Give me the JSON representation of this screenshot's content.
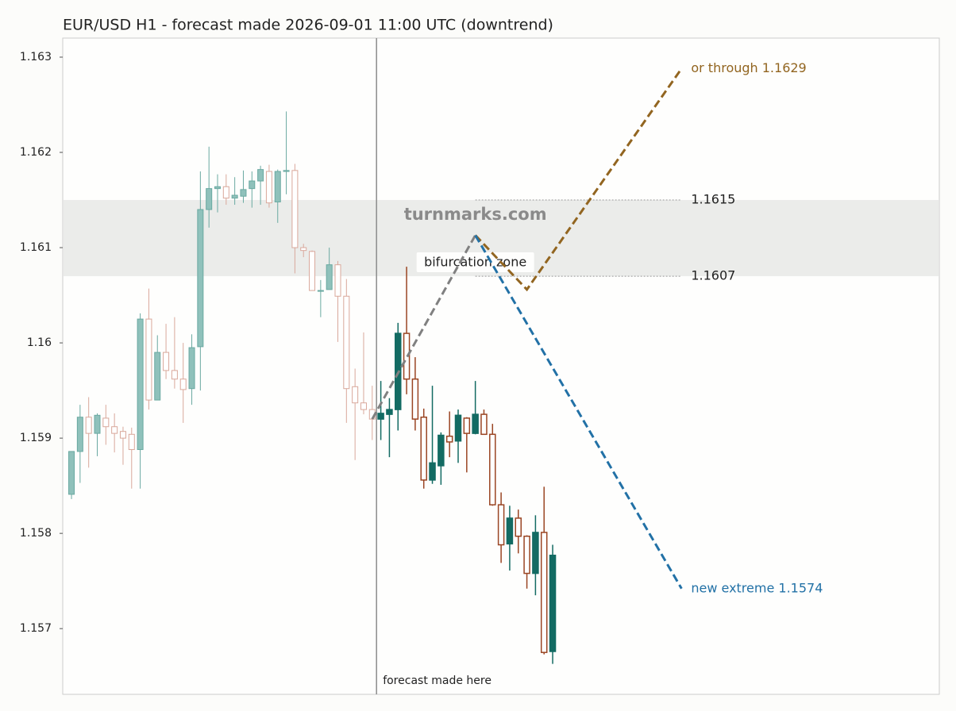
{
  "chart_data": {
    "type": "candlestick",
    "title": "EUR/USD H1 - forecast made 2026-09-01 11:00 UTC (downtrend)",
    "ylim": [
      1.15631,
      1.1632
    ],
    "yticks": [
      1.157,
      1.158,
      1.159,
      1.16,
      1.161,
      1.162,
      1.163
    ],
    "xlim": [
      -1.02,
      101
    ],
    "candles": {
      "open": [
        1.15841,
        1.15886,
        1.15922,
        1.15905,
        1.15921,
        1.15912,
        1.15907,
        1.15904,
        1.15888,
        1.16025,
        1.1594,
        1.1599,
        1.15971,
        1.15962,
        1.15952,
        1.15996,
        1.1614,
        1.16162,
        1.16164,
        1.16152,
        1.16154,
        1.16162,
        1.1617,
        1.1618,
        1.16148,
        1.1618,
        1.16181,
        1.161,
        1.16096,
        1.16055,
        1.16056,
        1.16082,
        1.16049,
        1.15954,
        1.15937,
        1.1593,
        1.1592,
        1.15925,
        1.1593,
        1.1601,
        1.15962,
        1.15922,
        1.15856,
        1.15871,
        1.15902,
        1.15897,
        1.15921,
        1.15905,
        1.15925,
        1.15904,
        1.1583,
        1.15789,
        1.15816,
        1.15797,
        1.15758,
        1.15801,
        1.15676
      ],
      "high": [
        1.15886,
        1.15935,
        1.15943,
        1.15926,
        1.15935,
        1.15926,
        1.15912,
        1.15911,
        1.16031,
        1.16057,
        1.16008,
        1.1602,
        1.16027,
        1.16,
        1.16009,
        1.1618,
        1.16206,
        1.16177,
        1.16177,
        1.16174,
        1.16181,
        1.1618,
        1.16186,
        1.16187,
        1.16182,
        1.16243,
        1.16188,
        1.16104,
        1.16097,
        1.16066,
        1.161,
        1.16086,
        1.16067,
        1.15973,
        1.16011,
        1.15955,
        1.1596,
        1.15942,
        1.16021,
        1.1608,
        1.15985,
        1.15931,
        1.15955,
        1.15906,
        1.15928,
        1.1593,
        1.15922,
        1.1596,
        1.1593,
        1.15915,
        1.15843,
        1.15829,
        1.15825,
        1.15798,
        1.15819,
        1.15849,
        1.15788
      ],
      "low": [
        1.15836,
        1.15853,
        1.15869,
        1.15881,
        1.15893,
        1.15885,
        1.15872,
        1.15847,
        1.15847,
        1.1593,
        1.1594,
        1.15962,
        1.15952,
        1.15916,
        1.15935,
        1.1595,
        1.16121,
        1.16137,
        1.16145,
        1.16145,
        1.16147,
        1.16142,
        1.16145,
        1.16142,
        1.16126,
        1.16156,
        1.16073,
        1.1609,
        1.16055,
        1.16027,
        1.16056,
        1.16001,
        1.15916,
        1.15877,
        1.15925,
        1.15898,
        1.15898,
        1.1588,
        1.15908,
        1.15946,
        1.15908,
        1.15847,
        1.15852,
        1.15851,
        1.1588,
        1.15874,
        1.15864,
        1.15904,
        1.15904,
        1.15829,
        1.15769,
        1.15761,
        1.15779,
        1.15742,
        1.15735,
        1.15673,
        1.15663
      ],
      "close": [
        1.15886,
        1.15922,
        1.15905,
        1.15924,
        1.15912,
        1.15905,
        1.159,
        1.15888,
        1.16025,
        1.1594,
        1.1599,
        1.15971,
        1.15962,
        1.15951,
        1.15995,
        1.1614,
        1.16162,
        1.16164,
        1.16152,
        1.16155,
        1.16161,
        1.1617,
        1.16182,
        1.16147,
        1.1618,
        1.16181,
        1.161,
        1.16097,
        1.16055,
        1.16055,
        1.16082,
        1.16049,
        1.15952,
        1.15937,
        1.1593,
        1.1592,
        1.15926,
        1.1593,
        1.1601,
        1.15962,
        1.1592,
        1.15856,
        1.15874,
        1.15903,
        1.15896,
        1.15924,
        1.15905,
        1.15925,
        1.15904,
        1.1583,
        1.15788,
        1.15816,
        1.15797,
        1.15758,
        1.15801,
        1.15675,
        1.15777
      ]
    },
    "forecast_start": 35.5,
    "forecast_label": "forecast made here",
    "levels": [
      1.1615,
      1.1607
    ],
    "zone_label": "bifurcation zone",
    "watermark": "turnmarks.com",
    "scenarios": [
      {
        "color": "#808080",
        "x": [
          35,
          47
        ],
        "values": [
          1.1592,
          1.16113
        ]
      },
      {
        "color": "#926520",
        "label": "or through 1.1629",
        "x": [
          47,
          53,
          71
        ],
        "values": [
          1.16113,
          1.16056,
          1.16288
        ]
      },
      {
        "color": "#2271a6",
        "label": "new extreme 1.1574",
        "x": [
          47,
          71
        ],
        "values": [
          1.16113,
          1.15742
        ]
      }
    ]
  }
}
